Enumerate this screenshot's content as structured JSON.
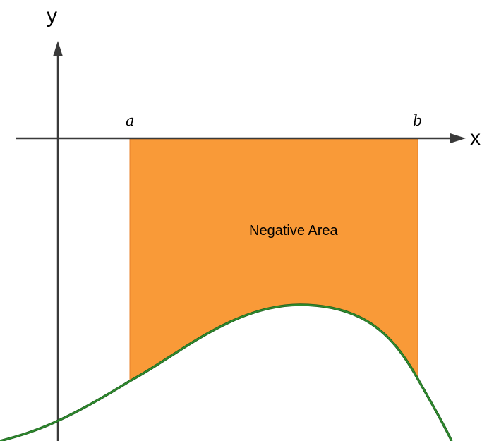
{
  "axes": {
    "x_label": "x",
    "y_label": "y"
  },
  "bounds": {
    "a_label": "a",
    "b_label": "b"
  },
  "region": {
    "label": "Negative Area"
  },
  "colors": {
    "axis": "#3a3a3a",
    "fill": "#f99a38",
    "fill_edge": "#e8802a",
    "curve": "#2e8b2e",
    "curve_shadow": "#1f5f1f",
    "background": "#ffffff"
  }
}
